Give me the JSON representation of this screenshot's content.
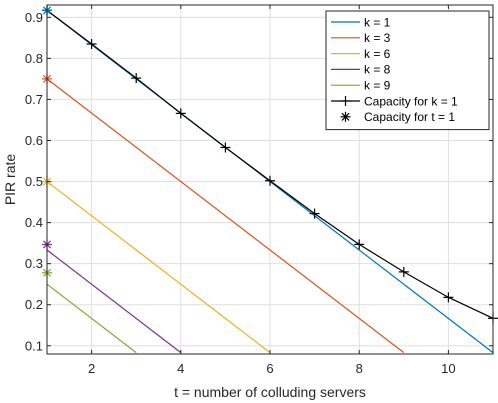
{
  "chart_data": {
    "type": "line",
    "title": "",
    "xlabel": "t = number of colluding servers",
    "ylabel": "PIR rate",
    "xlim": [
      1,
      11
    ],
    "ylim": [
      0.08,
      0.93
    ],
    "xticks": [
      2,
      4,
      6,
      8,
      10
    ],
    "yticks": [
      0.1,
      0.2,
      0.3,
      0.4,
      0.5,
      0.6,
      0.7,
      0.8,
      0.9
    ],
    "grid": true,
    "legend_position": "top-right",
    "series": [
      {
        "name": "k = 1",
        "color": "#0072BD",
        "marker": "none",
        "x": [
          1,
          11
        ],
        "y": [
          0.9167,
          0.0833
        ]
      },
      {
        "name": "k = 3",
        "color": "#D95319",
        "marker": "none",
        "x": [
          1,
          9
        ],
        "y": [
          0.75,
          0.0833
        ]
      },
      {
        "name": "k = 6",
        "color": "#EDB120",
        "marker": "none",
        "x": [
          1,
          6
        ],
        "y": [
          0.5,
          0.0833
        ]
      },
      {
        "name": "k = 8",
        "color": "#7E2F8E",
        "marker": "none",
        "x": [
          1,
          4
        ],
        "y": [
          0.3333,
          0.0833
        ]
      },
      {
        "name": "k = 9",
        "color": "#77AC30",
        "marker": "none",
        "x": [
          1,
          3
        ],
        "y": [
          0.25,
          0.0833
        ]
      },
      {
        "name": "Capacity for k = 1",
        "color": "#000000",
        "marker": "plus",
        "x": [
          1,
          2,
          3,
          4,
          5,
          6,
          7,
          8,
          9,
          10,
          11
        ],
        "y": [
          0.917,
          0.835,
          0.752,
          0.666,
          0.583,
          0.502,
          0.422,
          0.347,
          0.28,
          0.218,
          0.167
        ]
      },
      {
        "name": "Capacity for t = 1",
        "color": "#000000",
        "marker": "asterisk",
        "x": [
          1
        ],
        "y": [
          0.917
        ],
        "legend_only": true
      }
    ],
    "markers_t1": [
      {
        "k": "1",
        "y": 0.9167,
        "color": "#0072BD"
      },
      {
        "k": "3",
        "y": 0.75,
        "color": "#D95319"
      },
      {
        "k": "6",
        "y": 0.5,
        "color": "#EDB120"
      },
      {
        "k": "8",
        "y": 0.3467,
        "color": "#7E2F8E"
      },
      {
        "k": "9",
        "y": 0.2778,
        "color": "#77AC30"
      }
    ]
  }
}
